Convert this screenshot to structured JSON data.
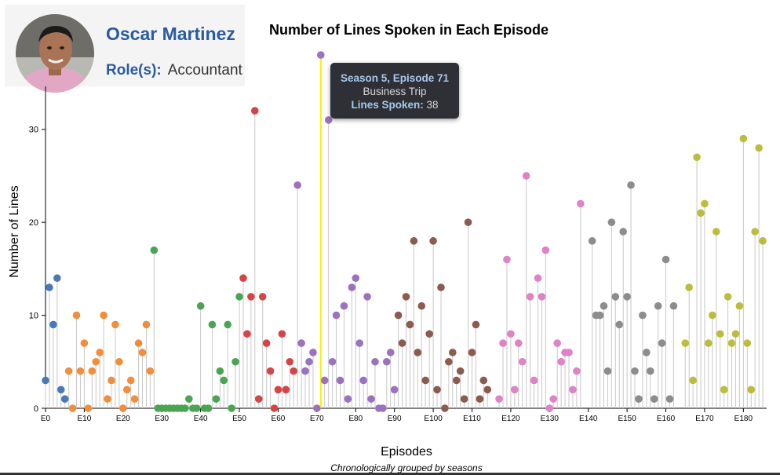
{
  "profile": {
    "name": "Oscar Martinez",
    "role_label": "Role(s):",
    "role_value": "Accountant"
  },
  "tooltip": {
    "title": "Season 5, Episode 71",
    "episode_name": "Business Trip",
    "lines_label": "Lines Spoken:",
    "lines_value": "38"
  },
  "chart_data": {
    "type": "scatter",
    "title": "Number of Lines Spoken in Each Episode",
    "xlabel": "Episodes",
    "ylabel": "Number of Lines",
    "subtitle": "Chronologically grouped by seasons",
    "xlim": [
      0,
      186
    ],
    "ylim": [
      0,
      38
    ],
    "y_ticks": [
      0,
      10,
      20,
      30
    ],
    "x_ticks": [
      0,
      10,
      20,
      30,
      40,
      50,
      60,
      70,
      80,
      90,
      100,
      110,
      120,
      130,
      140,
      150,
      160,
      170,
      180
    ],
    "x_tick_labels": [
      "E0",
      "E10",
      "E20",
      "E30",
      "E40",
      "E50",
      "E60",
      "E70",
      "E80",
      "E90",
      "E100",
      "E110",
      "E120",
      "E130",
      "E140",
      "E150",
      "E160",
      "E170",
      "E180"
    ],
    "highlight_episode": 71,
    "season_colors": [
      "#4a7ab5",
      "#f28e3b",
      "#4aa552",
      "#d64545",
      "#9a72c0",
      "#8c5b50",
      "#df82c6",
      "#8c8c8c",
      "#bcbd3e"
    ],
    "seasons": [
      {
        "episodes": [
          [
            0,
            3
          ],
          [
            1,
            13
          ],
          [
            2,
            9
          ],
          [
            3,
            14
          ],
          [
            4,
            2
          ],
          [
            5,
            1
          ]
        ]
      },
      {
        "episodes": [
          [
            6,
            4
          ],
          [
            7,
            0
          ],
          [
            8,
            10
          ],
          [
            9,
            4
          ],
          [
            10,
            7
          ],
          [
            11,
            0
          ],
          [
            12,
            4
          ],
          [
            13,
            5
          ],
          [
            14,
            6
          ],
          [
            15,
            10
          ],
          [
            16,
            1
          ],
          [
            17,
            3
          ],
          [
            18,
            9
          ],
          [
            19,
            5
          ],
          [
            20,
            0
          ],
          [
            21,
            2
          ],
          [
            22,
            3
          ],
          [
            23,
            1
          ],
          [
            24,
            7
          ],
          [
            25,
            6
          ],
          [
            26,
            9
          ],
          [
            27,
            4
          ]
        ]
      },
      {
        "episodes": [
          [
            28,
            17
          ],
          [
            29,
            0
          ],
          [
            30,
            0
          ],
          [
            31,
            0
          ],
          [
            32,
            0
          ],
          [
            33,
            0
          ],
          [
            34,
            0
          ],
          [
            35,
            0
          ],
          [
            36,
            0
          ],
          [
            37,
            1
          ],
          [
            38,
            0
          ],
          [
            39,
            0
          ],
          [
            40,
            11
          ],
          [
            41,
            0
          ],
          [
            42,
            0
          ],
          [
            43,
            9
          ],
          [
            44,
            1
          ],
          [
            45,
            4
          ],
          [
            46,
            3
          ],
          [
            47,
            9
          ],
          [
            48,
            0
          ],
          [
            49,
            5
          ],
          [
            50,
            12
          ]
        ]
      },
      {
        "episodes": [
          [
            51,
            14
          ],
          [
            52,
            8
          ],
          [
            53,
            12
          ],
          [
            54,
            32
          ],
          [
            55,
            1
          ],
          [
            56,
            12
          ],
          [
            57,
            7
          ],
          [
            58,
            4
          ],
          [
            59,
            0
          ],
          [
            60,
            2
          ],
          [
            61,
            8
          ],
          [
            62,
            2
          ],
          [
            63,
            5
          ],
          [
            64,
            4
          ]
        ]
      },
      {
        "episodes": [
          [
            65,
            24
          ],
          [
            66,
            7
          ],
          [
            67,
            4
          ],
          [
            68,
            5
          ],
          [
            69,
            6
          ],
          [
            70,
            0
          ],
          [
            71,
            38
          ],
          [
            72,
            3
          ],
          [
            73,
            31
          ],
          [
            74,
            5
          ],
          [
            75,
            10
          ],
          [
            76,
            3
          ],
          [
            77,
            11
          ],
          [
            78,
            1
          ],
          [
            79,
            13
          ],
          [
            80,
            14
          ],
          [
            81,
            7
          ],
          [
            82,
            3
          ],
          [
            83,
            12
          ],
          [
            84,
            1
          ],
          [
            85,
            5
          ],
          [
            86,
            0
          ],
          [
            87,
            0
          ],
          [
            88,
            5
          ],
          [
            89,
            6
          ],
          [
            90,
            2
          ]
        ]
      },
      {
        "episodes": [
          [
            91,
            10
          ],
          [
            92,
            7
          ],
          [
            93,
            12
          ],
          [
            94,
            9
          ],
          [
            95,
            18
          ],
          [
            96,
            6
          ],
          [
            97,
            11
          ],
          [
            98,
            3
          ],
          [
            99,
            8
          ],
          [
            100,
            18
          ],
          [
            101,
            2
          ],
          [
            102,
            13
          ],
          [
            103,
            0
          ],
          [
            104,
            5
          ],
          [
            105,
            6
          ],
          [
            106,
            3
          ],
          [
            107,
            4
          ],
          [
            108,
            1
          ],
          [
            109,
            20
          ],
          [
            110,
            6
          ],
          [
            111,
            9
          ],
          [
            112,
            1
          ],
          [
            113,
            3
          ],
          [
            114,
            2
          ]
        ]
      },
      {
        "episodes": [
          [
            117,
            1
          ],
          [
            118,
            7
          ],
          [
            119,
            16
          ],
          [
            120,
            8
          ],
          [
            121,
            2
          ],
          [
            122,
            7
          ],
          [
            123,
            5
          ],
          [
            124,
            25
          ],
          [
            125,
            12
          ],
          [
            126,
            3
          ],
          [
            127,
            14
          ],
          [
            128,
            12
          ],
          [
            129,
            17
          ],
          [
            130,
            0
          ],
          [
            131,
            1
          ],
          [
            132,
            7
          ],
          [
            133,
            5
          ],
          [
            134,
            6
          ],
          [
            135,
            6
          ],
          [
            136,
            2
          ],
          [
            137,
            4
          ],
          [
            138,
            22
          ]
        ]
      },
      {
        "episodes": [
          [
            141,
            18
          ],
          [
            142,
            10
          ],
          [
            143,
            10
          ],
          [
            144,
            11
          ],
          [
            145,
            4
          ],
          [
            146,
            20
          ],
          [
            147,
            12
          ],
          [
            148,
            9
          ],
          [
            149,
            19
          ],
          [
            150,
            12
          ],
          [
            151,
            24
          ],
          [
            152,
            4
          ],
          [
            153,
            1
          ],
          [
            154,
            10
          ],
          [
            155,
            6
          ],
          [
            156,
            4
          ],
          [
            157,
            1
          ],
          [
            158,
            11
          ],
          [
            159,
            7
          ],
          [
            160,
            16
          ],
          [
            161,
            1
          ],
          [
            162,
            11
          ]
        ]
      },
      {
        "episodes": [
          [
            165,
            7
          ],
          [
            166,
            13
          ],
          [
            167,
            3
          ],
          [
            168,
            27
          ],
          [
            169,
            21
          ],
          [
            170,
            22
          ],
          [
            171,
            7
          ],
          [
            172,
            10
          ],
          [
            173,
            19
          ],
          [
            174,
            8
          ],
          [
            175,
            2
          ],
          [
            176,
            12
          ],
          [
            177,
            7
          ],
          [
            178,
            8
          ],
          [
            179,
            11
          ],
          [
            180,
            29
          ],
          [
            181,
            7
          ],
          [
            182,
            2
          ],
          [
            183,
            19
          ],
          [
            184,
            28
          ],
          [
            185,
            18
          ]
        ]
      }
    ]
  }
}
